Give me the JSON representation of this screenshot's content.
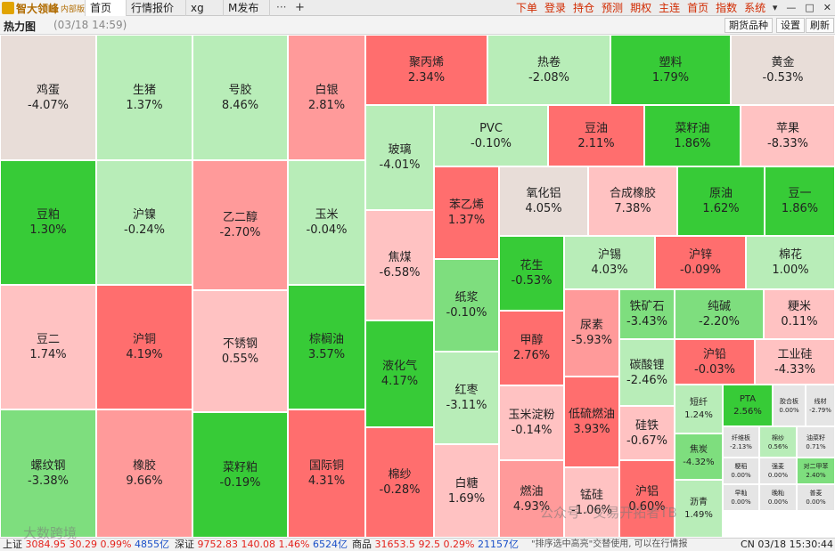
{
  "app": {
    "logo_text": "智大领峰",
    "logo_sub": "内部版"
  },
  "tabs": [
    {
      "label": "首页"
    },
    {
      "label": "行情报价"
    },
    {
      "label": "xg"
    },
    {
      "label": "M发布"
    }
  ],
  "tab_more": "···",
  "tab_add": "+",
  "topnav": [
    "下单",
    "登录",
    "持仓",
    "预测",
    "期权",
    "主连",
    "首页",
    "指数",
    "系统"
  ],
  "window": {
    "menu": "▾",
    "minimize": "—",
    "maximize": "□",
    "close": "✕"
  },
  "toolbar": {
    "title": "热力图",
    "time": "(03/18 14:59)",
    "buttons": [
      "期货品种",
      "设置",
      "刷新"
    ]
  },
  "colors": {
    "up_strong": "#ff6e6e",
    "up_mid": "#ff9a9a",
    "up_light": "#ffc2c2",
    "down_strong": "#37cb37",
    "down_mid": "#7ede7e",
    "down_light": "#b8edb8",
    "flat": "#e8ddd8",
    "grey": "#e5e5e5"
  },
  "treemap": [
    {
      "name": "鸡蛋",
      "pct": "-4.07%",
      "c": "flat"
    },
    {
      "name": "生猪",
      "pct": "1.37%",
      "c": "down_light"
    },
    {
      "name": "号胶",
      "pct": "8.46%",
      "c": "down_light"
    },
    {
      "name": "白银",
      "pct": "2.81%",
      "c": "up_mid"
    },
    {
      "name": "聚丙烯",
      "pct": "2.34%",
      "c": "up_strong"
    },
    {
      "name": "热卷",
      "pct": "-2.08%",
      "c": "down_light"
    },
    {
      "name": "塑料",
      "pct": "1.79%",
      "c": "down_strong"
    },
    {
      "name": "黄金",
      "pct": "-0.53%",
      "c": "flat"
    },
    {
      "name": "玻璃",
      "pct": "-4.01%",
      "c": "down_light"
    },
    {
      "name": "PVC",
      "pct": "-0.10%",
      "c": "down_light"
    },
    {
      "name": "豆油",
      "pct": "2.11%",
      "c": "up_strong"
    },
    {
      "name": "菜籽油",
      "pct": "1.86%",
      "c": "down_strong"
    },
    {
      "name": "苹果",
      "pct": "-8.33%",
      "c": "up_light"
    },
    {
      "name": "豆粕",
      "pct": "1.30%",
      "c": "down_strong"
    },
    {
      "name": "沪镍",
      "pct": "-0.24%",
      "c": "down_light"
    },
    {
      "name": "乙二醇",
      "pct": "-2.70%",
      "c": "up_mid"
    },
    {
      "name": "玉米",
      "pct": "-0.04%",
      "c": "down_light"
    },
    {
      "name": "苯乙烯",
      "pct": "1.37%",
      "c": "up_strong"
    },
    {
      "name": "氧化铝",
      "pct": "4.05%",
      "c": "flat"
    },
    {
      "name": "合成橡胶",
      "pct": "7.38%",
      "c": "up_light"
    },
    {
      "name": "原油",
      "pct": "1.62%",
      "c": "down_strong"
    },
    {
      "name": "豆一",
      "pct": "1.86%",
      "c": "down_strong"
    },
    {
      "name": "焦煤",
      "pct": "-6.58%",
      "c": "up_light"
    },
    {
      "name": "花生",
      "pct": "-0.53%",
      "c": "down_strong"
    },
    {
      "name": "沪锡",
      "pct": "4.03%",
      "c": "down_light"
    },
    {
      "name": "沪锌",
      "pct": "-0.09%",
      "c": "up_strong"
    },
    {
      "name": "棉花",
      "pct": "1.00%",
      "c": "down_light"
    },
    {
      "name": "纸浆",
      "pct": "-0.10%",
      "c": "down_mid"
    },
    {
      "name": "豆二",
      "pct": "1.74%",
      "c": "up_light"
    },
    {
      "name": "沪铜",
      "pct": "4.19%",
      "c": "up_strong"
    },
    {
      "name": "不锈钢",
      "pct": "0.55%",
      "c": "up_light"
    },
    {
      "name": "棕榈油",
      "pct": "3.57%",
      "c": "down_strong"
    },
    {
      "name": "尿素",
      "pct": "-5.93%",
      "c": "up_mid"
    },
    {
      "name": "铁矿石",
      "pct": "-3.43%",
      "c": "down_mid"
    },
    {
      "name": "纯碱",
      "pct": "-2.20%",
      "c": "down_mid"
    },
    {
      "name": "粳米",
      "pct": "0.11%",
      "c": "up_light"
    },
    {
      "name": "甲醇",
      "pct": "2.76%",
      "c": "up_strong"
    },
    {
      "name": "液化气",
      "pct": "4.17%",
      "c": "down_strong"
    },
    {
      "name": "碳酸锂",
      "pct": "-2.46%",
      "c": "down_light"
    },
    {
      "name": "沪铅",
      "pct": "-0.03%",
      "c": "up_strong"
    },
    {
      "name": "工业硅",
      "pct": "-4.33%",
      "c": "up_light"
    },
    {
      "name": "红枣",
      "pct": "-3.11%",
      "c": "down_light"
    },
    {
      "name": "短纤",
      "pct": "1.24%",
      "c": "down_light"
    },
    {
      "name": "PTA",
      "pct": "2.56%",
      "c": "down_strong"
    },
    {
      "name": "胶合板",
      "pct": "0.00%",
      "c": "grey"
    },
    {
      "name": "线材",
      "pct": "-2.79%",
      "c": "grey"
    },
    {
      "name": "玉米淀粉",
      "pct": "-0.14%",
      "c": "up_light"
    },
    {
      "name": "低硫燃油",
      "pct": "3.93%",
      "c": "up_strong"
    },
    {
      "name": "硅铁",
      "pct": "-0.67%",
      "c": "up_light"
    },
    {
      "name": "焦炭",
      "pct": "-4.32%",
      "c": "down_mid"
    },
    {
      "name": "纤维板",
      "pct": "-2.13%",
      "c": "grey"
    },
    {
      "name": "棉纱",
      "pct": "0.56%",
      "c": "down_light"
    },
    {
      "name": "油菜籽",
      "pct": "0.71%",
      "c": "grey"
    },
    {
      "name": "螺纹钢",
      "pct": "-3.38%",
      "c": "down_mid"
    },
    {
      "name": "橡胶",
      "pct": "9.66%",
      "c": "up_mid"
    },
    {
      "name": "菜籽粕",
      "pct": "-0.19%",
      "c": "down_strong"
    },
    {
      "name": "国际铜",
      "pct": "4.31%",
      "c": "up_strong"
    },
    {
      "name": "棉纱",
      "pct": "-0.28%",
      "c": "up_strong"
    },
    {
      "name": "白糖",
      "pct": "1.69%",
      "c": "up_light"
    },
    {
      "name": "燃油",
      "pct": "4.93%",
      "c": "up_mid"
    },
    {
      "name": "锰硅",
      "pct": "-1.06%",
      "c": "up_light"
    },
    {
      "name": "沪铝",
      "pct": "0.60%",
      "c": "up_strong"
    },
    {
      "name": "沥青",
      "pct": "1.49%",
      "c": "down_light"
    },
    {
      "name": "粳稻",
      "pct": "0.00%",
      "c": "grey"
    },
    {
      "name": "早籼",
      "pct": "0.00%",
      "c": "grey"
    },
    {
      "name": "强麦",
      "pct": "0.00%",
      "c": "grey"
    },
    {
      "name": "对二甲苯",
      "pct": "2.40%",
      "c": "down_mid"
    },
    {
      "name": "晚籼",
      "pct": "0.00%",
      "c": "grey"
    },
    {
      "name": "普麦",
      "pct": "0.00%",
      "c": "grey"
    },
    {
      "name": "动力煤",
      "pct": "0.00%",
      "c": "grey"
    }
  ],
  "status": {
    "sh_name": "上证",
    "sh_val": "3084.95",
    "sh_chg": "30.29",
    "sh_pct": "0.99%",
    "sh_amt": "4855亿",
    "sz_name": "深证",
    "sz_val": "9752.83",
    "sz_chg": "140.08",
    "sz_pct": "1.46%",
    "sz_amt": "6524亿",
    "sp_name": "商品",
    "sp_val": "31653.5",
    "sp_chg": "92.5",
    "sp_pct": "0.29%",
    "sp_amt": "21157亿",
    "hint": "\"排序选中高亮\"交替使用, 可以在行情报",
    "clock": "CN 03/18 15:30:44"
  },
  "watermarks": {
    "left": "大数跨境",
    "right": "公众号 · 交易开拓者TB"
  }
}
